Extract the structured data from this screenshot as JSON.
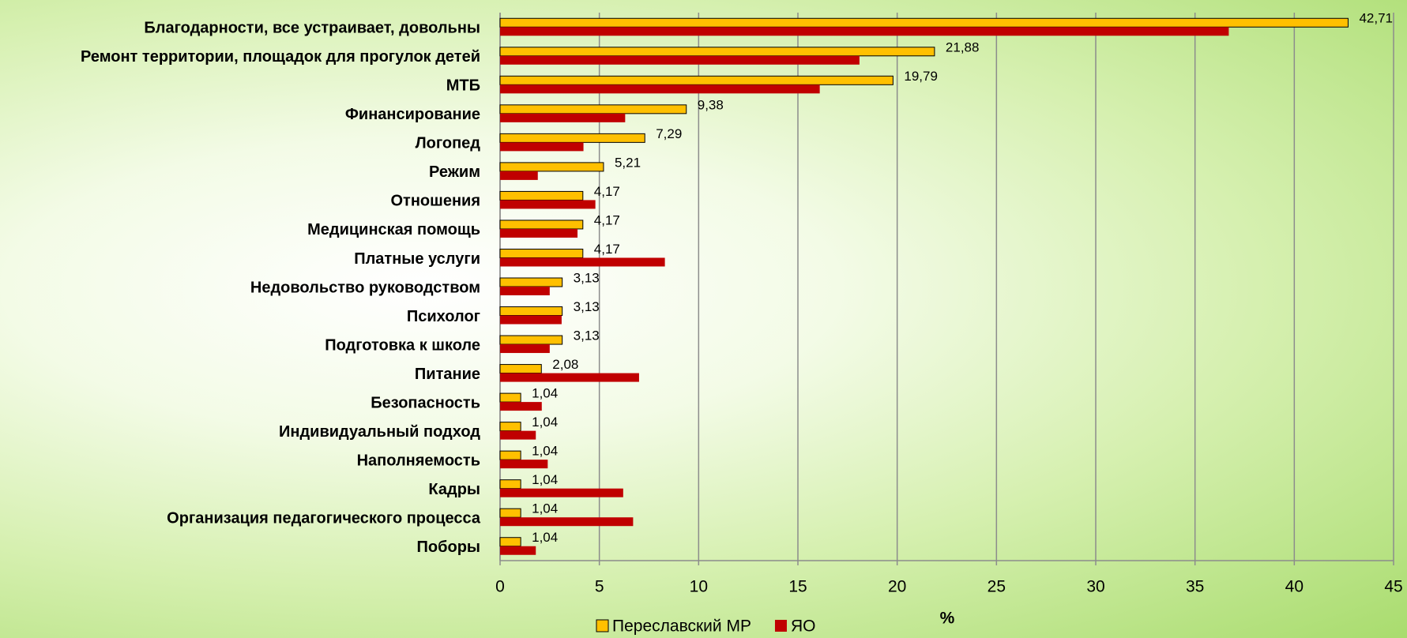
{
  "chart_data": {
    "type": "hbar",
    "categories": [
      "Благодарности, все устраивает, довольны",
      "Ремонт территории, площадок для прогулок детей",
      "МТБ",
      "Финансирование",
      "Логопед",
      "Режим",
      "Отношения",
      "Медицинская помощь",
      "Платные услуги",
      "Недовольство руководством",
      "Психолог",
      "Подготовка к школе",
      "Питание",
      "Безопасность",
      "Индивидуальный подход",
      "Наполняемость",
      "Кадры",
      "Организация педагогического процесса",
      "Поборы"
    ],
    "series": [
      {
        "name": "Переславский МР",
        "color": "#FFC000",
        "values": [
          42.71,
          21.88,
          19.79,
          9.38,
          7.29,
          5.21,
          4.17,
          4.17,
          4.17,
          3.13,
          3.13,
          3.13,
          2.08,
          1.04,
          1.04,
          1.04,
          1.04,
          1.04,
          1.04
        ],
        "value_labels": [
          "42,71",
          "21,88",
          "19,79",
          "9,38",
          "7,29",
          "5,21",
          "4,17",
          "4,17",
          "4,17",
          "3,13",
          "3,13",
          "3,13",
          "2,08",
          "1,04",
          "1,04",
          "1,04",
          "1,04",
          "1,04",
          "1,04"
        ]
      },
      {
        "name": "ЯО",
        "color": "#C00000",
        "values": [
          36.7,
          18.1,
          16.1,
          6.3,
          4.2,
          1.9,
          4.8,
          3.9,
          8.3,
          2.5,
          3.1,
          2.5,
          7.0,
          2.1,
          1.8,
          2.4,
          6.2,
          6.7,
          1.8
        ]
      }
    ],
    "x_label": "%",
    "xlim": [
      0,
      45
    ],
    "xticks": [
      0,
      5,
      10,
      15,
      20,
      25,
      30,
      35,
      40,
      45
    ],
    "grid": true,
    "legend": "bottom"
  }
}
